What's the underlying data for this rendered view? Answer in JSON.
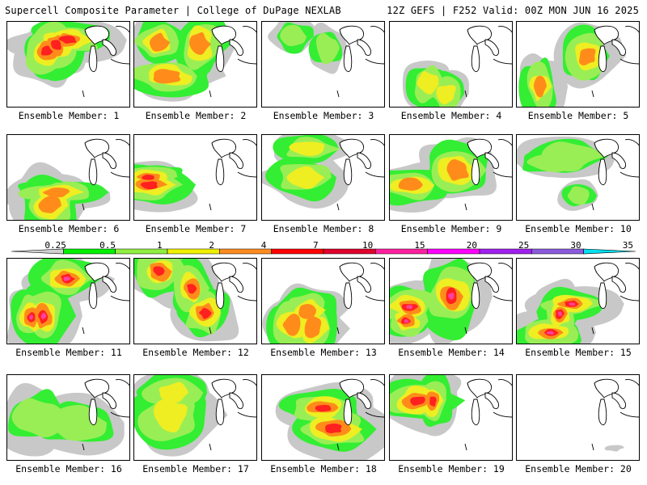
{
  "header": {
    "title": "Supercell Composite Parameter | College of DuPage NEXLAB",
    "run_info": "12Z GEFS | F252 Valid: 00Z MON JUN 16 2025"
  },
  "colorbar": {
    "labels": [
      "0.25",
      "0.5",
      "1",
      "2",
      "4",
      "7",
      "10",
      "15",
      "20",
      "25",
      "30",
      "35"
    ],
    "colors": [
      "#d0d0d0",
      "#00f000",
      "#90ee40",
      "#f0f000",
      "#ff8c20",
      "#ff0000",
      "#e0002c",
      "#ff20a0",
      "#ff00ff",
      "#a020f0",
      "#8c5adc",
      "#00e0f0"
    ]
  },
  "map_colors": {
    "light": "#c8c8c8",
    "green": "#33ee33",
    "lime": "#99ee55",
    "yellow": "#eeee22",
    "orange": "#ff8c1a",
    "red": "#ff2020",
    "pink": "#ff40a0"
  },
  "panels": [
    {
      "label": "Ensemble Member: 1",
      "intensity": 4
    },
    {
      "label": "Ensemble Member: 2",
      "intensity": 3
    },
    {
      "label": "Ensemble Member: 3",
      "intensity": 1
    },
    {
      "label": "Ensemble Member: 4",
      "intensity": 2
    },
    {
      "label": "Ensemble Member: 5",
      "intensity": 3
    },
    {
      "label": "Ensemble Member: 6",
      "intensity": 3
    },
    {
      "label": "Ensemble Member: 7",
      "intensity": 4
    },
    {
      "label": "Ensemble Member: 8",
      "intensity": 2
    },
    {
      "label": "Ensemble Member: 9",
      "intensity": 3
    },
    {
      "label": "Ensemble Member: 10",
      "intensity": 1
    },
    {
      "label": "Ensemble Member: 11",
      "intensity": 5
    },
    {
      "label": "Ensemble Member: 12",
      "intensity": 4
    },
    {
      "label": "Ensemble Member: 13",
      "intensity": 3
    },
    {
      "label": "Ensemble Member: 14",
      "intensity": 5
    },
    {
      "label": "Ensemble Member: 15",
      "intensity": 5
    },
    {
      "label": "Ensemble Member: 16",
      "intensity": 1
    },
    {
      "label": "Ensemble Member: 17",
      "intensity": 2
    },
    {
      "label": "Ensemble Member: 18",
      "intensity": 4
    },
    {
      "label": "Ensemble Member: 19",
      "intensity": 4
    },
    {
      "label": "Ensemble Member: 20",
      "intensity": 0
    }
  ]
}
